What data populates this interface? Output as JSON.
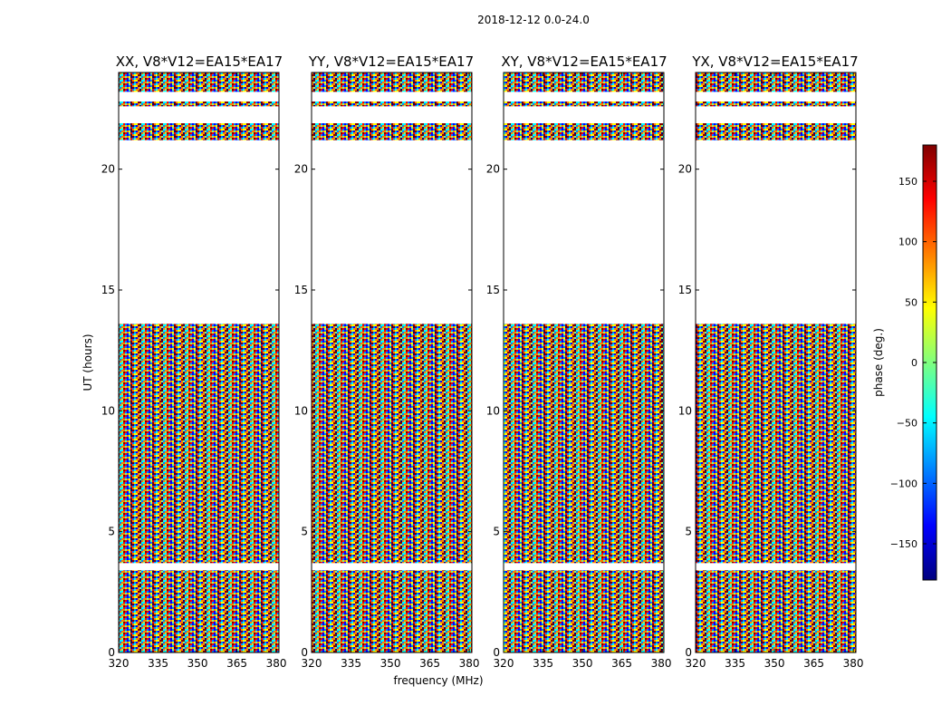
{
  "chart_data": {
    "type": "heatmap",
    "suptitle": "2018-12-12 0.0-24.0",
    "xlabel": "frequency (MHz)",
    "ylabel": "UT (hours)",
    "xlim": [
      320,
      381
    ],
    "ylim": [
      0,
      24
    ],
    "xticks": [
      320,
      335,
      350,
      365,
      380
    ],
    "yticks": [
      0,
      5,
      10,
      15,
      20
    ],
    "panels": [
      {
        "title": "XX, V8*V12=EA15*EA17"
      },
      {
        "title": "YY, V8*V12=EA15*EA17"
      },
      {
        "title": "XY, V8*V12=EA15*EA17"
      },
      {
        "title": "YX, V8*V12=EA15*EA17"
      }
    ],
    "data_hours": [
      [
        0.0,
        3.4
      ],
      [
        3.7,
        13.6
      ],
      [
        21.2,
        21.9
      ],
      [
        22.6,
        22.8
      ],
      [
        23.2,
        24.0
      ]
    ],
    "colorbar": {
      "label": "phase (deg.)",
      "range": [
        -180,
        180
      ],
      "ticks": [
        -150,
        -100,
        -50,
        0,
        50,
        100,
        150
      ],
      "colormap": [
        "#00007f",
        "#0000ff",
        "#007fff",
        "#00ffff",
        "#7fff7f",
        "#ffff00",
        "#ff7f00",
        "#ff0000",
        "#7f0000"
      ]
    }
  }
}
